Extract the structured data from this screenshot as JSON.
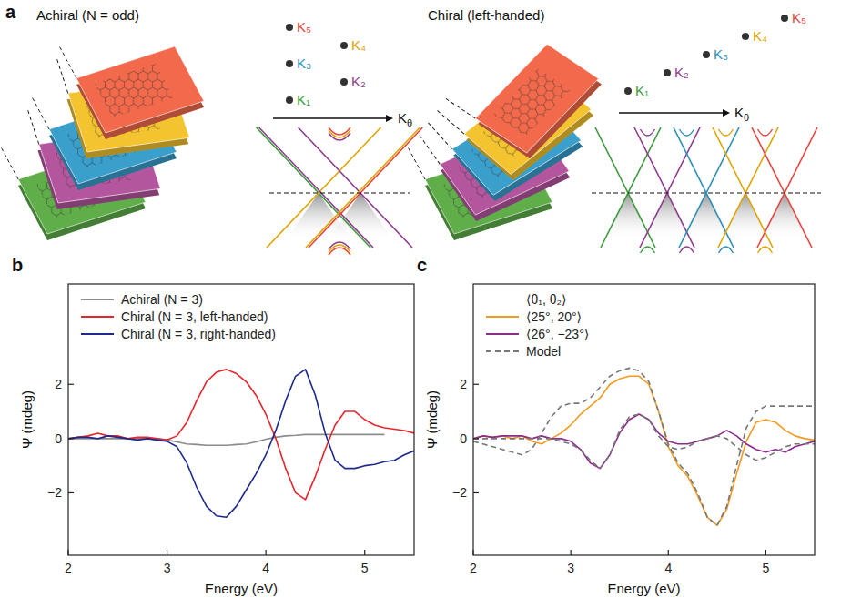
{
  "diagram": {
    "label": "a",
    "layer_colors": [
      "#5fae4a",
      "#b4569e",
      "#3b9fcc",
      "#f3c330",
      "#f26a4b"
    ],
    "panels": [
      {
        "title": "Achiral (N = odd)",
        "axis_label": "Kθ",
        "points": [
          {
            "label": "K₁",
            "color": "#3a9b3a"
          },
          {
            "label": "K₂",
            "color": "#8e3c8e"
          },
          {
            "label": "K₃",
            "color": "#2b8fb8"
          },
          {
            "label": "K₄",
            "color": "#e0a400"
          },
          {
            "label": "K₅",
            "color": "#e8453a"
          }
        ]
      },
      {
        "title": "Chiral (left-handed)",
        "axis_label": "Kθ",
        "points": [
          {
            "label": "K₁",
            "color": "#3a9b3a"
          },
          {
            "label": "K₂",
            "color": "#8e3c8e"
          },
          {
            "label": "K₃",
            "color": "#2b8fb8"
          },
          {
            "label": "K₄",
            "color": "#e0a400"
          },
          {
            "label": "K₅",
            "color": "#e8453a"
          }
        ]
      }
    ]
  },
  "chart_data": [
    {
      "label": "b",
      "type": "line",
      "xlabel": "Energy (eV)",
      "ylabel": "Ψ (mdeg)",
      "xlim": [
        2,
        5.5
      ],
      "ylim": [
        -4.3,
        5.7
      ],
      "xticks": [
        2,
        3,
        4,
        5
      ],
      "yticks": [
        {
          "value": -2,
          "label": "−2"
        },
        0,
        2
      ],
      "grid": false,
      "legend": "upper left",
      "x": [
        2,
        2.1,
        2.2,
        2.3,
        2.4,
        2.5,
        2.6,
        2.7,
        2.8,
        2.9,
        3,
        3.1,
        3.2,
        3.3,
        3.4,
        3.5,
        3.6,
        3.7,
        3.8,
        3.9,
        4,
        4.1,
        4.2,
        4.3,
        4.4,
        4.5,
        4.6,
        4.7,
        4.8,
        4.9,
        5,
        5.1,
        5.2,
        5.3,
        5.4,
        5.5
      ],
      "series": [
        {
          "name": "Achiral (N = 3)",
          "color": "#8c8c8c",
          "line_style": "solid",
          "values": [
            0,
            0,
            0,
            0,
            0,
            0,
            0,
            0,
            0,
            0,
            -0.05,
            -0.12,
            -0.2,
            -0.22,
            -0.25,
            -0.25,
            -0.25,
            -0.22,
            -0.2,
            -0.12,
            -0.02,
            0.05,
            0.1,
            0.12,
            0.15,
            0.15,
            0.15,
            0.15,
            0.15,
            0.15,
            0.15,
            0.15,
            0.15,
            null,
            null,
            null
          ]
        },
        {
          "name": "Chiral (N = 3, left-handed)",
          "color": "#e8252b",
          "line_style": "solid",
          "values": [
            0,
            0.05,
            0.1,
            0.2,
            0.1,
            0.1,
            0,
            0.05,
            0.05,
            0,
            -0.05,
            0.1,
            0.6,
            1.4,
            2.1,
            2.45,
            2.55,
            2.4,
            2.1,
            1.6,
            0.9,
            0,
            -1.1,
            -2.0,
            -2.25,
            -1.4,
            -0.4,
            0.5,
            1.0,
            1.0,
            0.7,
            0.5,
            0.4,
            0.35,
            0.3,
            0.2
          ]
        },
        {
          "name": "Chiral (N = 3, right-handed)",
          "color": "#1d2a8c",
          "line_style": "solid",
          "values": [
            0,
            0.05,
            0.05,
            0,
            0.1,
            0.05,
            0,
            -0.05,
            0,
            -0.05,
            -0.1,
            -0.3,
            -0.9,
            -1.8,
            -2.5,
            -2.85,
            -2.9,
            -2.5,
            -1.9,
            -1.3,
            -0.6,
            0.3,
            1.4,
            2.3,
            2.55,
            1.6,
            0.2,
            -0.8,
            -1.1,
            -1.1,
            -1.0,
            -0.95,
            -0.85,
            -0.8,
            -0.6,
            -0.45
          ]
        }
      ]
    },
    {
      "label": "c",
      "type": "line",
      "xlabel": "Energy (eV)",
      "ylabel": "Ψ (mdeg)",
      "legend_title": "⟨θ₁, θ₂⟩",
      "xlim": [
        2,
        5.5
      ],
      "ylim": [
        -4.3,
        5.7
      ],
      "xticks": [
        2,
        3,
        4,
        5
      ],
      "yticks": [
        {
          "value": -2,
          "label": "−2"
        },
        0,
        2
      ],
      "grid": false,
      "legend": "upper left",
      "x": [
        2,
        2.1,
        2.2,
        2.3,
        2.4,
        2.5,
        2.6,
        2.7,
        2.8,
        2.9,
        3,
        3.1,
        3.2,
        3.3,
        3.4,
        3.5,
        3.6,
        3.7,
        3.8,
        3.9,
        4,
        4.1,
        4.2,
        4.3,
        4.4,
        4.5,
        4.6,
        4.7,
        4.8,
        4.9,
        5,
        5.1,
        5.2,
        5.3,
        5.4,
        5.5
      ],
      "series": [
        {
          "name": "⟨25°, 20°⟩",
          "color": "#f59a1e",
          "line_style": "solid",
          "values": [
            0,
            0.1,
            0.05,
            0.1,
            0,
            0.1,
            -0.1,
            -0.2,
            0,
            0.2,
            0.5,
            0.9,
            1.2,
            1.5,
            2.0,
            2.2,
            2.3,
            2.3,
            2.0,
            1.0,
            -0.3,
            -1.0,
            -1.4,
            -2.1,
            -2.9,
            -3.2,
            -2.6,
            -1.3,
            -0.1,
            0.6,
            0.7,
            0.6,
            0.3,
            0.1,
            0,
            -0.05
          ]
        },
        {
          "name": "⟨26°, −23°⟩",
          "color": "#8b2d8e",
          "line_style": "solid",
          "values": [
            0,
            0.1,
            0.05,
            0.1,
            0.1,
            0.1,
            0,
            0.1,
            0,
            0,
            -0.1,
            -0.4,
            -0.9,
            -1.1,
            -0.6,
            0.2,
            0.7,
            0.9,
            0.7,
            0.2,
            -0.1,
            -0.2,
            -0.2,
            -0.1,
            0,
            0.1,
            0.3,
            0.1,
            -0.2,
            -0.4,
            -0.5,
            -0.4,
            -0.5,
            -0.3,
            -0.2,
            -0.1
          ]
        },
        {
          "name": "Model",
          "color": "#777777",
          "line_style": "dashed",
          "values": [
            -0.1,
            -0.2,
            -0.3,
            -0.4,
            -0.5,
            -0.6,
            -0.4,
            0.2,
            0.8,
            1.2,
            1.3,
            1.3,
            1.5,
            1.9,
            2.3,
            2.5,
            2.6,
            2.5,
            2.1,
            1.0,
            -0.2,
            -0.9,
            -1.3,
            -2.0,
            -2.9,
            -3.2,
            -2.5,
            -1.0,
            0.4,
            1.0,
            1.2,
            1.2,
            1.2,
            1.2,
            1.2,
            1.2
          ]
        },
        {
          "name": "Model",
          "color": "#777777",
          "line_style": "dashed",
          "values": [
            0,
            0,
            0,
            0,
            0,
            0,
            0,
            0,
            0,
            -0.1,
            -0.2,
            -0.4,
            -0.8,
            -1.1,
            -0.6,
            0.3,
            0.8,
            0.9,
            0.7,
            0.1,
            -0.3,
            -0.4,
            -0.3,
            -0.1,
            0,
            0.1,
            0,
            -0.3,
            -0.6,
            -0.8,
            -0.7,
            -0.5,
            -0.3,
            -0.2,
            -0.2,
            -0.2
          ]
        }
      ]
    }
  ]
}
